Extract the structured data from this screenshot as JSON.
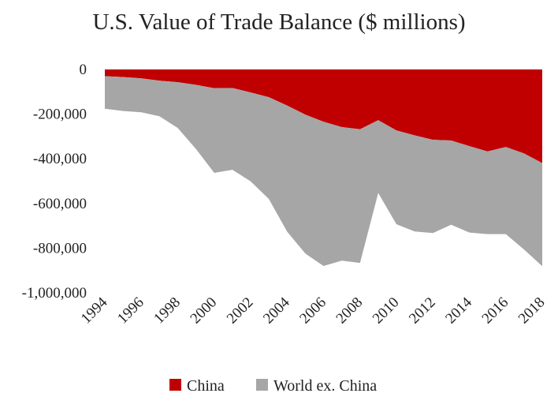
{
  "chart_data": {
    "type": "area",
    "stacked": true,
    "title": "U.S. Value of Trade Balance ($ millions)",
    "xlabel": "",
    "ylabel": "",
    "x": [
      1994,
      1995,
      1996,
      1997,
      1998,
      1999,
      2000,
      2001,
      2002,
      2003,
      2004,
      2005,
      2006,
      2007,
      2008,
      2009,
      2010,
      2011,
      2012,
      2013,
      2014,
      2015,
      2016,
      2017,
      2018
    ],
    "x_tick_labels": [
      "1994",
      "1996",
      "1998",
      "2000",
      "2002",
      "2004",
      "2006",
      "2008",
      "2010",
      "2012",
      "2014",
      "2016",
      "2018"
    ],
    "y_tick_labels": [
      "0",
      "-200,000",
      "-400,000",
      "-600,000",
      "-800,000",
      "-1,000,000"
    ],
    "ylim": [
      -1000000,
      0
    ],
    "grid": false,
    "legend_position": "bottom",
    "series": [
      {
        "name": "China",
        "color": "#C00000",
        "values": [
          -30000,
          -34000,
          -40000,
          -50000,
          -57000,
          -69000,
          -84000,
          -83000,
          -103000,
          -124000,
          -162000,
          -202000,
          -234000,
          -258000,
          -268000,
          -227000,
          -273000,
          -295000,
          -315000,
          -318000,
          -343000,
          -367000,
          -347000,
          -376000,
          -419000
        ]
      },
      {
        "name": "World ex. China",
        "color": "#A6A6A6",
        "values": [
          -146000,
          -152000,
          -152000,
          -160000,
          -205000,
          -287000,
          -379000,
          -366000,
          -398000,
          -456000,
          -564000,
          -622000,
          -646000,
          -598000,
          -598000,
          -326000,
          -420000,
          -430000,
          -417000,
          -377000,
          -387000,
          -370000,
          -390000,
          -430000,
          -462000
        ]
      }
    ],
    "totals": [
      -176000,
      -186000,
      -192000,
      -210000,
      -262000,
      -356000,
      -463000,
      -449000,
      -501000,
      -580000,
      -726000,
      -824000,
      -880000,
      -856000,
      -866000,
      -553000,
      -693000,
      -725000,
      -732000,
      -695000,
      -730000,
      -737000,
      -737000,
      -806000,
      -881000
    ]
  }
}
